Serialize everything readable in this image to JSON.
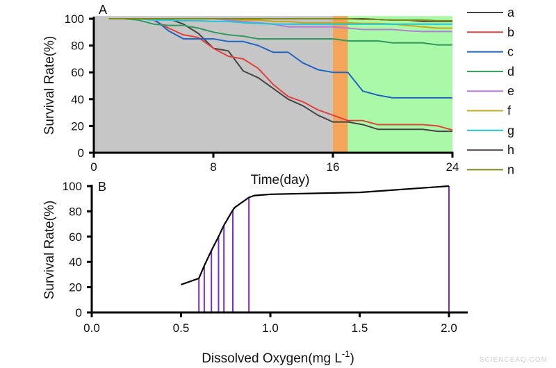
{
  "watermark": "SCIENCEAQ.COM",
  "chart_data": [
    {
      "type": "line",
      "panel_label": "A",
      "xlabel": "Time(day)",
      "ylabel": "Survival Rate(%)",
      "xlim": [
        0,
        24
      ],
      "ylim": [
        0,
        102
      ],
      "xticks": [
        0,
        8,
        16,
        24
      ],
      "yticks": [
        0,
        20,
        40,
        60,
        80,
        100
      ],
      "grid": false,
      "legend_placement": "right",
      "background_regions": [
        {
          "from": 0,
          "to": 16,
          "color": "#c6c6c6"
        },
        {
          "from": 16,
          "to": 17,
          "color": "#f5a55a"
        },
        {
          "from": 17,
          "to": 24,
          "color": "#aaf9a8"
        }
      ],
      "x": [
        1,
        2,
        3,
        4,
        5,
        6,
        7,
        8,
        9,
        10,
        11,
        12,
        13,
        14,
        15,
        16,
        17,
        18,
        19,
        20,
        21,
        22,
        23,
        24
      ],
      "series": [
        {
          "name": "a",
          "color": "#444444",
          "values": [
            100,
            100,
            100,
            100,
            100,
            96,
            89,
            78,
            76,
            61,
            56,
            48,
            40,
            35,
            28,
            23,
            23,
            21,
            17.5,
            17.5,
            17.5,
            17.5,
            16,
            16
          ]
        },
        {
          "name": "b",
          "color": "#e2403a",
          "values": [
            100,
            100,
            100,
            99,
            93,
            88,
            86,
            78,
            72,
            70,
            63,
            51,
            42,
            38,
            32,
            28,
            24,
            24,
            21,
            21,
            21,
            21,
            20,
            17
          ]
        },
        {
          "name": "c",
          "color": "#2064c4",
          "values": [
            100,
            100,
            100,
            100,
            91,
            85,
            85,
            85,
            83,
            83,
            80,
            75,
            75,
            67,
            62,
            60,
            60,
            46,
            43,
            41,
            41,
            41,
            41,
            41
          ]
        },
        {
          "name": "d",
          "color": "#2f9a5e",
          "values": [
            100,
            100,
            99,
            96,
            95,
            95,
            93,
            90,
            88,
            87,
            85,
            85,
            85,
            85,
            85,
            85,
            83.5,
            83.5,
            83.5,
            82,
            82,
            82,
            80.5,
            80.5
          ]
        },
        {
          "name": "e",
          "color": "#b07ed6",
          "values": [
            100,
            100,
            100,
            100,
            100,
            100,
            100,
            100,
            99,
            98,
            97,
            96,
            94,
            94,
            94,
            94,
            93,
            92,
            92,
            92,
            91,
            90.5,
            90.5,
            90.5
          ]
        },
        {
          "name": "f",
          "color": "#c8a818",
          "values": [
            100,
            100,
            100,
            100,
            100,
            100,
            100,
            100,
            100,
            99,
            99,
            98,
            98,
            97,
            97,
            97,
            97,
            96.5,
            96.5,
            96,
            95,
            94,
            93,
            93
          ]
        },
        {
          "name": "g",
          "color": "#22c6d2",
          "values": [
            100,
            100,
            100,
            99,
            99,
            98.5,
            98.5,
            98,
            98,
            97,
            96.5,
            96,
            96,
            96,
            96,
            96,
            96,
            96,
            96,
            96,
            96,
            96,
            96,
            96
          ]
        },
        {
          "name": "h",
          "color": "#5c4c4c",
          "values": [
            100,
            100,
            100,
            100,
            100,
            100,
            100,
            100,
            100,
            100,
            100,
            100,
            100,
            100,
            100,
            100,
            100,
            100,
            99.5,
            99,
            99,
            98,
            98,
            98
          ]
        },
        {
          "name": "n",
          "color": "#7f8a1a",
          "values": [
            100,
            100,
            100,
            100,
            100,
            100,
            100,
            100,
            100,
            100,
            100,
            100,
            100,
            100,
            100,
            100,
            100,
            99.5,
            99.5,
            99,
            99,
            99,
            98.5,
            98.5
          ]
        }
      ]
    },
    {
      "type": "line",
      "panel_label": "B",
      "xlabel": "Dissolved Oxygen(mg L",
      "xlabel_sup": "-1",
      "xlabel_end": ")",
      "ylabel": "Survival Rate(%)",
      "xlim": [
        0,
        2.1
      ],
      "ylim": [
        0,
        100
      ],
      "xticks": [
        "0.0",
        "0.5",
        "1.0",
        "1.5",
        "2.0"
      ],
      "yticks": [
        0,
        20,
        40,
        60,
        80,
        100
      ],
      "grid": false,
      "line_color": "#000000",
      "drop_line_color": "#7a2ad0",
      "points": [
        {
          "x": 0.5,
          "y": 22
        },
        {
          "x": 0.6,
          "y": 27
        },
        {
          "x": 0.63,
          "y": 37
        },
        {
          "x": 0.67,
          "y": 49
        },
        {
          "x": 0.71,
          "y": 60
        },
        {
          "x": 0.74,
          "y": 69
        },
        {
          "x": 0.79,
          "y": 81
        },
        {
          "x": 0.8,
          "y": 83
        },
        {
          "x": 0.88,
          "y": 91
        },
        {
          "x": 0.91,
          "y": 92.5
        },
        {
          "x": 1.0,
          "y": 93.5
        },
        {
          "x": 1.5,
          "y": 95
        },
        {
          "x": 2.0,
          "y": 100
        }
      ],
      "drop_lines_x": [
        0.6,
        0.63,
        0.67,
        0.71,
        0.74,
        0.79,
        0.88,
        2.0
      ]
    }
  ]
}
